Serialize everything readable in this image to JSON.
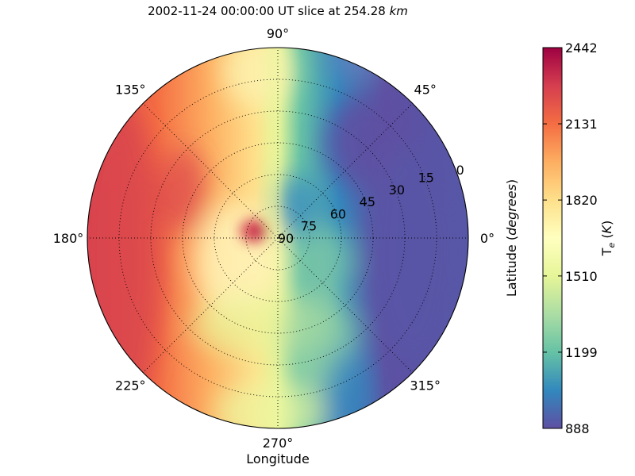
{
  "chart_data": {
    "type": "polar-contour",
    "title": "2002-11-24 00:00:00 UT slice at 254.28 km",
    "title_unit_suffix": "km",
    "xlabel": "Longitude",
    "ylabel": "Latitude (degrees)",
    "radial_axis": {
      "label": "Latitude",
      "unit": "degrees",
      "ticks": [
        "0",
        "15",
        "30",
        "45",
        "60",
        "75",
        "90"
      ],
      "range": [
        90,
        0
      ]
    },
    "angular_axis": {
      "ticks": [
        "0°",
        "45°",
        "90°",
        "135°",
        "180°",
        "225°",
        "270°",
        "315°"
      ]
    },
    "grid": true,
    "colorbar": {
      "label": "T_e (K)",
      "ticks": [
        "888",
        "1199",
        "1510",
        "1820",
        "2131",
        "2442"
      ],
      "range": [
        888,
        2442
      ],
      "colormap": [
        "#5e4fa2",
        "#3288bd",
        "#66c2a5",
        "#abdda4",
        "#e6f598",
        "#ffffbf",
        "#fee08b",
        "#fdae61",
        "#f46d43",
        "#d53e4f",
        "#9e0142"
      ]
    },
    "field_description_samples": [
      {
        "longitude": 180,
        "latitude": 0,
        "value": 2180
      },
      {
        "longitude": 135,
        "latitude": 30,
        "value": 2130
      },
      {
        "longitude": 180,
        "latitude": 85,
        "value": 2350
      },
      {
        "longitude": 90,
        "latitude": 45,
        "value": 1700
      },
      {
        "longitude": 270,
        "latitude": 30,
        "value": 1650
      },
      {
        "longitude": 30,
        "latitude": 45,
        "value": 940
      },
      {
        "longitude": 0,
        "latitude": 15,
        "value": 950
      },
      {
        "longitude": 315,
        "latitude": 45,
        "value": 1050
      },
      {
        "longitude": 330,
        "latitude": 80,
        "value": 1100
      }
    ]
  }
}
